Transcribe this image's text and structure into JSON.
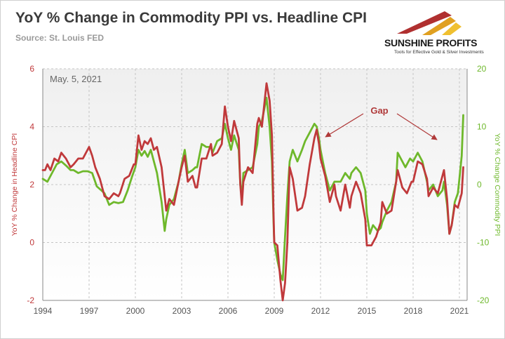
{
  "header": {
    "title": "YoY % Change in Commodity PPI vs. Headline CPI",
    "source": "Source: St. Louis FED"
  },
  "logo": {
    "name": "SUNSHINE PROFITS",
    "tagline": "Tools for Effective Gold & Silver Investments"
  },
  "colors": {
    "cpi": "#c0393b",
    "ppi": "#6eb82b",
    "annotation": "#b03a3a",
    "plot_bg": "#efefef",
    "grid": "#c4c4c4"
  },
  "chart_data": {
    "type": "line",
    "date_label": "May. 5, 2021",
    "xlim": [
      1994,
      2021.5
    ],
    "x_ticks": [
      1994,
      1997,
      2000,
      2003,
      2006,
      2009,
      2012,
      2015,
      2018,
      2021
    ],
    "x_tick_labels": [
      "1994",
      "1997",
      "2000",
      "2003",
      "2006",
      "2009",
      "2012",
      "2015",
      "2018",
      "2021"
    ],
    "y_left": {
      "label": "YoY % Change in Headline CPI",
      "lim": [
        -2,
        6
      ],
      "ticks": [
        -2,
        0,
        2,
        4,
        6
      ]
    },
    "y_right": {
      "label": "YoY % Change Commodity PPI",
      "lim": [
        -20,
        20
      ],
      "ticks": [
        -20,
        -10,
        0,
        10,
        20
      ]
    },
    "annotation": {
      "text": "Gap"
    },
    "series": [
      {
        "axis": "left",
        "color": "#c0393b",
        "points": [
          [
            1994.0,
            2.5
          ],
          [
            1994.15,
            2.5
          ],
          [
            1994.3,
            2.7
          ],
          [
            1994.5,
            2.5
          ],
          [
            1994.75,
            2.9
          ],
          [
            1995.0,
            2.8
          ],
          [
            1995.2,
            3.1
          ],
          [
            1995.5,
            2.9
          ],
          [
            1995.8,
            2.6
          ],
          [
            1996.0,
            2.7
          ],
          [
            1996.3,
            2.9
          ],
          [
            1996.6,
            2.9
          ],
          [
            1996.9,
            3.2
          ],
          [
            1997.0,
            3.3
          ],
          [
            1997.2,
            3.0
          ],
          [
            1997.4,
            2.6
          ],
          [
            1997.7,
            2.2
          ],
          [
            1998.0,
            1.6
          ],
          [
            1998.3,
            1.5
          ],
          [
            1998.6,
            1.7
          ],
          [
            1998.9,
            1.6
          ],
          [
            1999.0,
            1.7
          ],
          [
            1999.3,
            2.2
          ],
          [
            1999.6,
            2.3
          ],
          [
            1999.9,
            2.7
          ],
          [
            2000.0,
            2.7
          ],
          [
            2000.2,
            3.7
          ],
          [
            2000.4,
            3.2
          ],
          [
            2000.6,
            3.5
          ],
          [
            2000.8,
            3.4
          ],
          [
            2001.0,
            3.6
          ],
          [
            2001.2,
            3.2
          ],
          [
            2001.4,
            3.3
          ],
          [
            2001.7,
            2.6
          ],
          [
            2001.9,
            1.6
          ],
          [
            2002.0,
            1.1
          ],
          [
            2002.2,
            1.5
          ],
          [
            2002.5,
            1.3
          ],
          [
            2002.8,
            2.1
          ],
          [
            2003.0,
            2.6
          ],
          [
            2003.2,
            3.0
          ],
          [
            2003.4,
            2.1
          ],
          [
            2003.7,
            2.3
          ],
          [
            2003.9,
            1.9
          ],
          [
            2004.0,
            1.9
          ],
          [
            2004.3,
            2.9
          ],
          [
            2004.6,
            2.9
          ],
          [
            2004.9,
            3.4
          ],
          [
            2005.0,
            3.0
          ],
          [
            2005.3,
            3.1
          ],
          [
            2005.6,
            3.4
          ],
          [
            2005.8,
            4.7
          ],
          [
            2006.0,
            4.0
          ],
          [
            2006.2,
            3.5
          ],
          [
            2006.4,
            4.2
          ],
          [
            2006.7,
            3.6
          ],
          [
            2006.8,
            2.0
          ],
          [
            2006.9,
            1.3
          ],
          [
            2007.0,
            2.1
          ],
          [
            2007.3,
            2.6
          ],
          [
            2007.6,
            2.4
          ],
          [
            2007.9,
            4.1
          ],
          [
            2008.0,
            4.3
          ],
          [
            2008.2,
            4.0
          ],
          [
            2008.5,
            5.5
          ],
          [
            2008.7,
            4.9
          ],
          [
            2008.85,
            3.7
          ],
          [
            2008.95,
            1.1
          ],
          [
            2009.0,
            0.0
          ],
          [
            2009.2,
            -0.1
          ],
          [
            2009.4,
            -1.3
          ],
          [
            2009.55,
            -2.0
          ],
          [
            2009.7,
            -1.4
          ],
          [
            2009.85,
            0.0
          ],
          [
            2009.95,
            1.8
          ],
          [
            2010.0,
            2.6
          ],
          [
            2010.2,
            2.2
          ],
          [
            2010.5,
            1.1
          ],
          [
            2010.8,
            1.2
          ],
          [
            2011.0,
            1.6
          ],
          [
            2011.3,
            2.7
          ],
          [
            2011.6,
            3.6
          ],
          [
            2011.75,
            3.9
          ],
          [
            2011.9,
            3.4
          ],
          [
            2012.0,
            2.9
          ],
          [
            2012.3,
            2.3
          ],
          [
            2012.6,
            1.4
          ],
          [
            2012.9,
            2.0
          ],
          [
            2013.0,
            1.6
          ],
          [
            2013.3,
            1.1
          ],
          [
            2013.6,
            2.0
          ],
          [
            2013.9,
            1.2
          ],
          [
            2014.0,
            1.6
          ],
          [
            2014.3,
            2.1
          ],
          [
            2014.6,
            1.7
          ],
          [
            2014.9,
            0.8
          ],
          [
            2015.0,
            -0.1
          ],
          [
            2015.3,
            -0.1
          ],
          [
            2015.6,
            0.2
          ],
          [
            2015.9,
            0.7
          ],
          [
            2016.0,
            1.4
          ],
          [
            2016.3,
            1.0
          ],
          [
            2016.6,
            1.1
          ],
          [
            2016.9,
            2.1
          ],
          [
            2017.0,
            2.5
          ],
          [
            2017.3,
            1.9
          ],
          [
            2017.6,
            1.7
          ],
          [
            2017.9,
            2.1
          ],
          [
            2018.0,
            2.1
          ],
          [
            2018.3,
            2.8
          ],
          [
            2018.6,
            2.7
          ],
          [
            2018.9,
            2.2
          ],
          [
            2019.0,
            1.6
          ],
          [
            2019.3,
            1.9
          ],
          [
            2019.6,
            1.7
          ],
          [
            2019.9,
            2.3
          ],
          [
            2020.0,
            2.5
          ],
          [
            2020.2,
            1.5
          ],
          [
            2020.35,
            0.3
          ],
          [
            2020.5,
            0.6
          ],
          [
            2020.7,
            1.3
          ],
          [
            2020.9,
            1.2
          ],
          [
            2021.0,
            1.4
          ],
          [
            2021.15,
            1.7
          ],
          [
            2021.25,
            2.6
          ]
        ]
      },
      {
        "axis": "right",
        "color": "#6eb82b",
        "points": [
          [
            1994.0,
            1.0
          ],
          [
            1994.3,
            0.5
          ],
          [
            1994.6,
            2.0
          ],
          [
            1994.9,
            3.5
          ],
          [
            1995.2,
            4.0
          ],
          [
            1995.5,
            3.3
          ],
          [
            1995.8,
            2.5
          ],
          [
            1996.0,
            2.5
          ],
          [
            1996.3,
            2.0
          ],
          [
            1996.6,
            2.3
          ],
          [
            1996.9,
            2.3
          ],
          [
            1997.2,
            2.0
          ],
          [
            1997.5,
            -0.3
          ],
          [
            1997.8,
            -1.0
          ],
          [
            1998.0,
            -1.5
          ],
          [
            1998.3,
            -3.5
          ],
          [
            1998.6,
            -3.0
          ],
          [
            1998.9,
            -3.2
          ],
          [
            1999.2,
            -3.0
          ],
          [
            1999.5,
            -1.0
          ],
          [
            1999.8,
            1.5
          ],
          [
            2000.0,
            3.0
          ],
          [
            2000.2,
            6.0
          ],
          [
            2000.4,
            5.0
          ],
          [
            2000.6,
            5.8
          ],
          [
            2000.8,
            4.8
          ],
          [
            2001.0,
            6.0
          ],
          [
            2001.2,
            4.0
          ],
          [
            2001.4,
            2.0
          ],
          [
            2001.7,
            -3.0
          ],
          [
            2001.9,
            -8.0
          ],
          [
            2002.0,
            -6.0
          ],
          [
            2002.2,
            -3.5
          ],
          [
            2002.5,
            -2.5
          ],
          [
            2002.8,
            0.5
          ],
          [
            2003.0,
            3.5
          ],
          [
            2003.2,
            6.0
          ],
          [
            2003.4,
            2.0
          ],
          [
            2003.7,
            2.5
          ],
          [
            2003.9,
            3.0
          ],
          [
            2004.0,
            3.0
          ],
          [
            2004.3,
            7.0
          ],
          [
            2004.6,
            6.5
          ],
          [
            2004.9,
            6.5
          ],
          [
            2005.0,
            5.5
          ],
          [
            2005.3,
            7.5
          ],
          [
            2005.6,
            8.0
          ],
          [
            2005.8,
            10.5
          ],
          [
            2006.0,
            8.0
          ],
          [
            2006.2,
            6.0
          ],
          [
            2006.4,
            8.5
          ],
          [
            2006.7,
            6.0
          ],
          [
            2006.8,
            0.0
          ],
          [
            2006.9,
            -2.0
          ],
          [
            2007.0,
            2.0
          ],
          [
            2007.3,
            2.5
          ],
          [
            2007.6,
            3.0
          ],
          [
            2007.9,
            7.0
          ],
          [
            2008.0,
            10.0
          ],
          [
            2008.2,
            11.0
          ],
          [
            2008.5,
            15.0
          ],
          [
            2008.7,
            10.0
          ],
          [
            2008.85,
            4.0
          ],
          [
            2008.95,
            -6.0
          ],
          [
            2009.0,
            -10.0
          ],
          [
            2009.2,
            -13.0
          ],
          [
            2009.4,
            -15.5
          ],
          [
            2009.55,
            -16.5
          ],
          [
            2009.7,
            -9.0
          ],
          [
            2009.85,
            -2.0
          ],
          [
            2010.0,
            4.0
          ],
          [
            2010.2,
            6.0
          ],
          [
            2010.5,
            4.0
          ],
          [
            2010.8,
            6.0
          ],
          [
            2011.0,
            7.5
          ],
          [
            2011.3,
            9.0
          ],
          [
            2011.6,
            10.5
          ],
          [
            2011.75,
            10.0
          ],
          [
            2011.9,
            8.0
          ],
          [
            2012.0,
            6.0
          ],
          [
            2012.3,
            2.0
          ],
          [
            2012.6,
            -1.0
          ],
          [
            2012.9,
            0.5
          ],
          [
            2013.0,
            0.5
          ],
          [
            2013.3,
            0.5
          ],
          [
            2013.6,
            2.0
          ],
          [
            2013.9,
            1.0
          ],
          [
            2014.0,
            2.0
          ],
          [
            2014.3,
            3.0
          ],
          [
            2014.6,
            2.0
          ],
          [
            2014.9,
            -1.0
          ],
          [
            2015.0,
            -5.0
          ],
          [
            2015.2,
            -8.5
          ],
          [
            2015.4,
            -7.0
          ],
          [
            2015.7,
            -8.0
          ],
          [
            2015.9,
            -7.5
          ],
          [
            2016.0,
            -6.5
          ],
          [
            2016.3,
            -4.5
          ],
          [
            2016.6,
            -3.0
          ],
          [
            2016.9,
            0.5
          ],
          [
            2017.0,
            5.5
          ],
          [
            2017.2,
            4.5
          ],
          [
            2017.5,
            3.0
          ],
          [
            2017.8,
            4.5
          ],
          [
            2018.0,
            4.0
          ],
          [
            2018.3,
            5.5
          ],
          [
            2018.6,
            4.0
          ],
          [
            2018.9,
            0.5
          ],
          [
            2019.0,
            -1.0
          ],
          [
            2019.3,
            0.0
          ],
          [
            2019.6,
            -2.0
          ],
          [
            2019.9,
            -1.0
          ],
          [
            2020.0,
            0.5
          ],
          [
            2020.2,
            -3.5
          ],
          [
            2020.35,
            -8.5
          ],
          [
            2020.5,
            -7.0
          ],
          [
            2020.7,
            -3.0
          ],
          [
            2020.9,
            -1.5
          ],
          [
            2021.0,
            1.0
          ],
          [
            2021.15,
            5.0
          ],
          [
            2021.25,
            12.0
          ]
        ]
      }
    ]
  }
}
